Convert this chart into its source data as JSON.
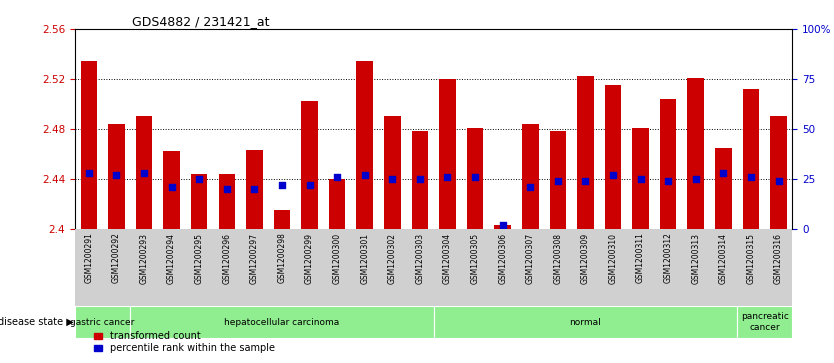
{
  "title": "GDS4882 / 231421_at",
  "samples": [
    "GSM1200291",
    "GSM1200292",
    "GSM1200293",
    "GSM1200294",
    "GSM1200295",
    "GSM1200296",
    "GSM1200297",
    "GSM1200298",
    "GSM1200299",
    "GSM1200300",
    "GSM1200301",
    "GSM1200302",
    "GSM1200303",
    "GSM1200304",
    "GSM1200305",
    "GSM1200306",
    "GSM1200307",
    "GSM1200308",
    "GSM1200309",
    "GSM1200310",
    "GSM1200311",
    "GSM1200312",
    "GSM1200313",
    "GSM1200314",
    "GSM1200315",
    "GSM1200316"
  ],
  "bar_values": [
    2.534,
    2.484,
    2.49,
    2.462,
    2.444,
    2.444,
    2.463,
    2.415,
    2.502,
    2.44,
    2.534,
    2.49,
    2.478,
    2.52,
    2.481,
    2.403,
    2.484,
    2.478,
    2.522,
    2.515,
    2.481,
    2.504,
    2.521,
    2.465,
    2.512,
    2.49
  ],
  "percentile_values": [
    28,
    27,
    28,
    21,
    25,
    20,
    20,
    22,
    22,
    26,
    27,
    25,
    25,
    26,
    26,
    2,
    21,
    24,
    24,
    27,
    25,
    24,
    25,
    28,
    26,
    24
  ],
  "ylim_left": [
    2.4,
    2.56
  ],
  "ylim_right": [
    0,
    100
  ],
  "yticks_left": [
    2.4,
    2.44,
    2.48,
    2.52,
    2.56
  ],
  "ytick_labels_left": [
    "2.4",
    "2.44",
    "2.48",
    "2.52",
    "2.56"
  ],
  "ytick_labels_right": [
    "0",
    "25",
    "50",
    "75",
    "100%"
  ],
  "bar_color": "#CC0000",
  "percentile_color": "#0000CC",
  "gray_bg": "#d0d0d0",
  "green_bg": "#90EE90",
  "group_boundaries": [
    [
      0,
      2,
      "gastric cancer"
    ],
    [
      2,
      13,
      "hepatocellular carcinoma"
    ],
    [
      13,
      24,
      "normal"
    ],
    [
      24,
      26,
      "pancreatic\ncancer"
    ]
  ],
  "grid_lines": [
    2.44,
    2.48,
    2.52
  ],
  "bar_width": 0.6,
  "legend_labels": [
    "transformed count",
    "percentile rank within the sample"
  ]
}
